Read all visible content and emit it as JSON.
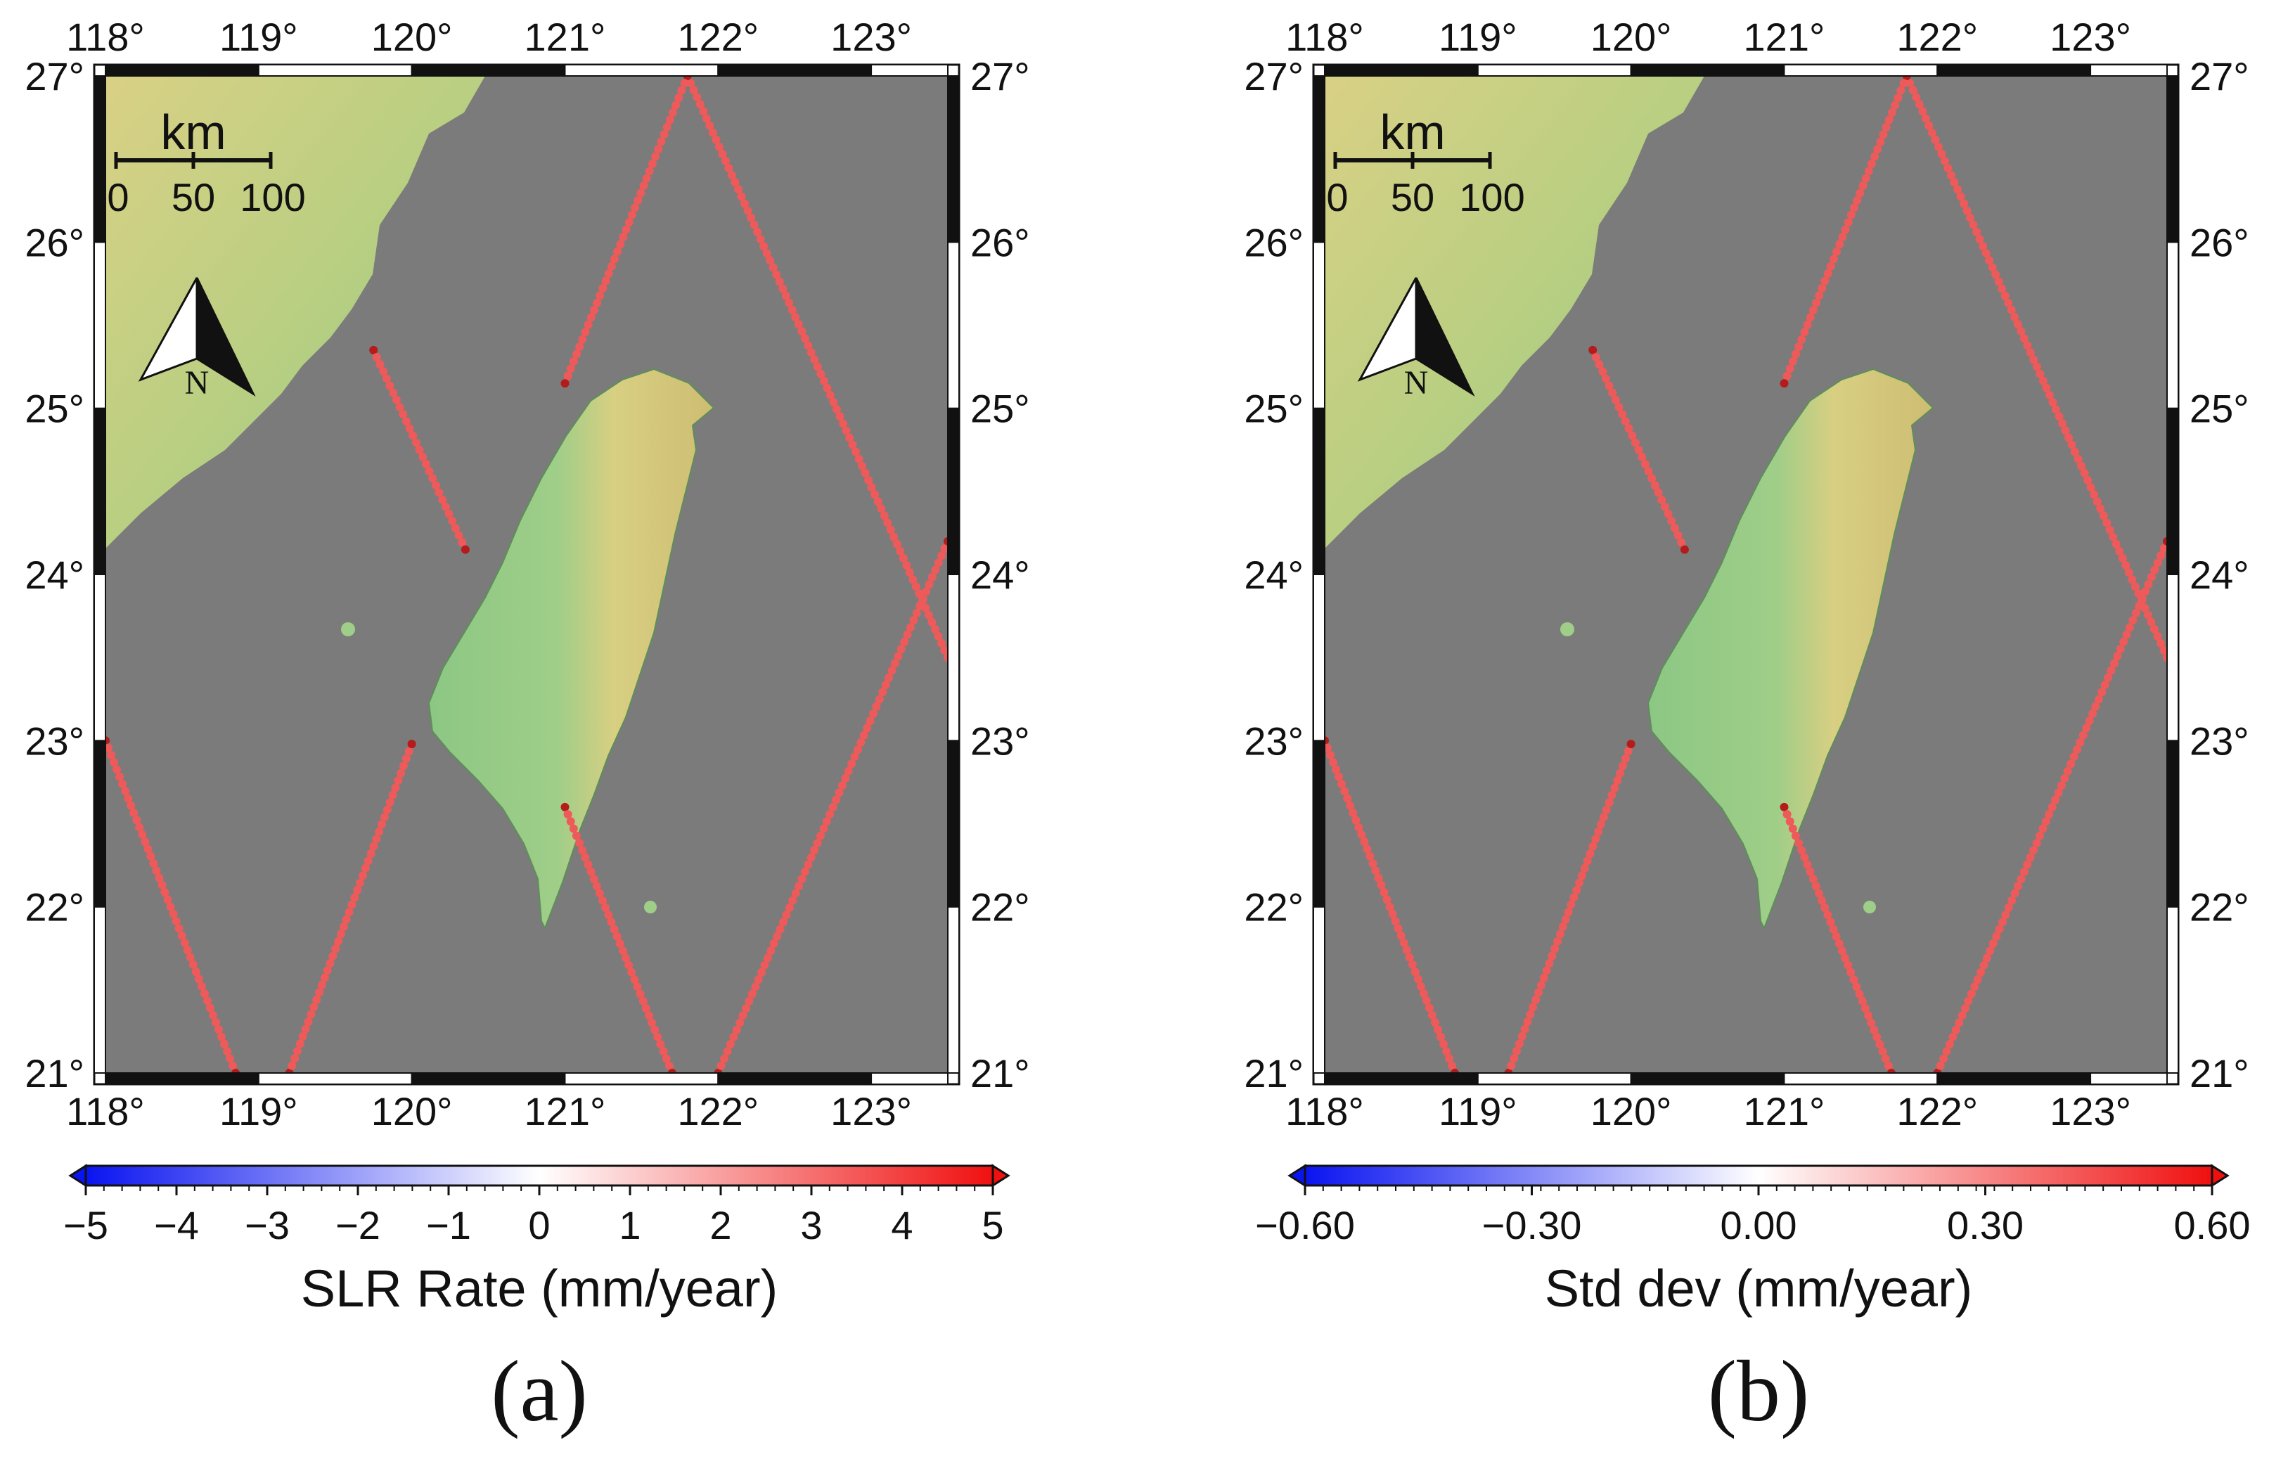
{
  "figure": {
    "lon_ticks": [
      "118°",
      "119°",
      "120°",
      "121°",
      "122°",
      "123°"
    ],
    "lat_ticks": [
      "27°",
      "26°",
      "25°",
      "24°",
      "23°",
      "22°",
      "21°"
    ],
    "scale_bar": {
      "unit": "km",
      "labels": [
        "0",
        "50",
        "100"
      ]
    },
    "north_arrow": {
      "label": "N"
    },
    "colors": {
      "ocean": "#7b7b7b",
      "lowland": "#8fc98a",
      "highland": "#d8cd7e",
      "track": "#ee5a5a",
      "track_dark": "#b51b1b"
    }
  },
  "panels": [
    {
      "letter": "(a)",
      "colorbar": {
        "label": "SLR Rate (mm/year)",
        "ticks": [
          "−5",
          "−4",
          "−3",
          "−2",
          "−1",
          "0",
          "1",
          "2",
          "3",
          "4",
          "5"
        ],
        "range": [
          -5,
          5
        ],
        "colors": [
          "#0a14f0",
          "#ffffff",
          "#f01010"
        ]
      }
    },
    {
      "letter": "(b)",
      "colorbar": {
        "label": "Std dev (mm/year)",
        "ticks": [
          "−0.60",
          "−0.30",
          "0.00",
          "0.30",
          "0.60"
        ],
        "range": [
          -0.6,
          0.6
        ],
        "colors": [
          "#0a14f0",
          "#ffffff",
          "#f01010"
        ]
      }
    }
  ],
  "map_data": {
    "lon_range": [
      118,
      123.5
    ],
    "lat_range": [
      21,
      27
    ],
    "tracks": [
      {
        "lon": [
          121.8,
          123.5
        ],
        "lat": [
          27,
          23.5
        ]
      },
      {
        "lon": [
          121.8,
          121.0
        ],
        "lat": [
          27,
          25.15
        ]
      },
      {
        "lon": [
          119.75,
          120.35
        ],
        "lat": [
          25.35,
          24.15
        ]
      },
      {
        "lon": [
          118.0,
          118.85
        ],
        "lat": [
          23.0,
          21.0
        ]
      },
      {
        "lon": [
          119.2,
          120.0
        ],
        "lat": [
          21.0,
          22.98
        ]
      },
      {
        "lon": [
          121.0,
          121.7
        ],
        "lat": [
          22.6,
          21.0
        ]
      },
      {
        "lon": [
          122.0,
          123.5
        ],
        "lat": [
          21.0,
          24.2
        ]
      }
    ]
  }
}
